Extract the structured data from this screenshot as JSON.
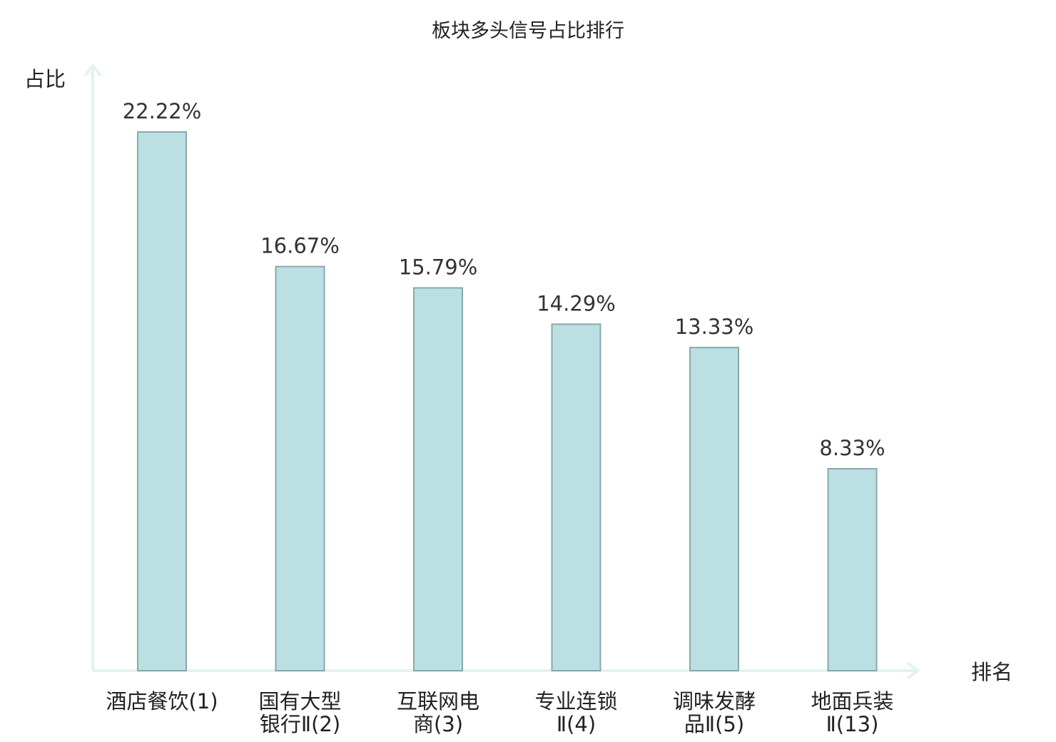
{
  "chart_data": {
    "type": "bar",
    "title": "板块多头信号占比排行",
    "xlabel": "排名",
    "ylabel": "占比",
    "categories": [
      [
        "酒店餐饮(1)"
      ],
      [
        "国有大型",
        "银行Ⅱ(2)"
      ],
      [
        "互联网电",
        "商(3)"
      ],
      [
        "专业连锁",
        "Ⅱ(4)"
      ],
      [
        "调味发酵",
        "品Ⅱ(5)"
      ],
      [
        "地面兵装",
        "Ⅱ(13)"
      ]
    ],
    "values": [
      22.22,
      16.67,
      15.79,
      14.29,
      13.33,
      8.33
    ],
    "value_labels": [
      "22.22%",
      "16.67%",
      "15.79%",
      "14.29%",
      "13.33%",
      "8.33%"
    ],
    "highlight_index": 5,
    "ylim": [
      0,
      22.22
    ],
    "grid": false,
    "legend": "none",
    "colors": {
      "bar_fill": "#bbe0e3",
      "bar_stroke": "#8aa8ab",
      "axis": "#e2f3f1",
      "text": "#222222",
      "value_text": "#333333",
      "highlight_text": "#e00000"
    }
  }
}
